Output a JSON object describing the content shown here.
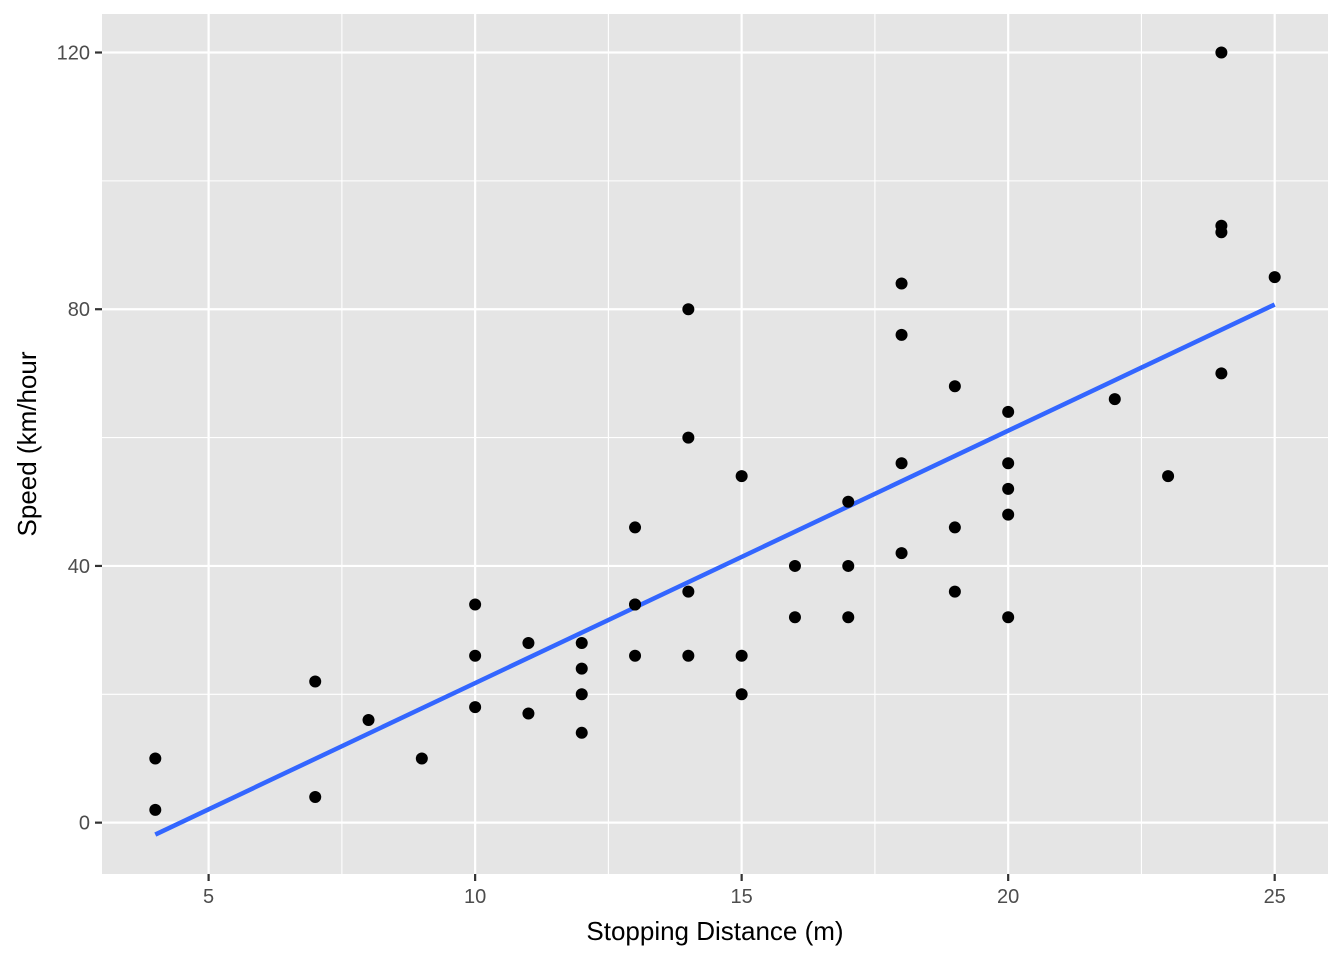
{
  "chart_data": {
    "type": "scatter",
    "title": "",
    "xlabel": "Stopping Distance (m)",
    "ylabel": "Speed (km/hour",
    "xlim": [
      3,
      26
    ],
    "ylim": [
      -8,
      126
    ],
    "x_ticks": [
      5,
      10,
      15,
      20,
      25
    ],
    "y_ticks": [
      0,
      40,
      80,
      120
    ],
    "x_minor_ticks": [
      7.5,
      12.5,
      17.5,
      22.5
    ],
    "y_minor_ticks": [
      20,
      60,
      100
    ],
    "grid": true,
    "colors": {
      "panel": "#e5e5e5",
      "grid": "#ffffff",
      "points": "#000000",
      "fit_line": "#3366ff"
    },
    "points": [
      {
        "x": 4,
        "y": 2
      },
      {
        "x": 4,
        "y": 10
      },
      {
        "x": 7,
        "y": 4
      },
      {
        "x": 7,
        "y": 22
      },
      {
        "x": 8,
        "y": 16
      },
      {
        "x": 9,
        "y": 10
      },
      {
        "x": 10,
        "y": 18
      },
      {
        "x": 10,
        "y": 26
      },
      {
        "x": 10,
        "y": 34
      },
      {
        "x": 11,
        "y": 17
      },
      {
        "x": 11,
        "y": 28
      },
      {
        "x": 12,
        "y": 14
      },
      {
        "x": 12,
        "y": 20
      },
      {
        "x": 12,
        "y": 24
      },
      {
        "x": 12,
        "y": 28
      },
      {
        "x": 13,
        "y": 26
      },
      {
        "x": 13,
        "y": 34
      },
      {
        "x": 13,
        "y": 34
      },
      {
        "x": 13,
        "y": 46
      },
      {
        "x": 14,
        "y": 26
      },
      {
        "x": 14,
        "y": 36
      },
      {
        "x": 14,
        "y": 60
      },
      {
        "x": 14,
        "y": 80
      },
      {
        "x": 15,
        "y": 20
      },
      {
        "x": 15,
        "y": 26
      },
      {
        "x": 15,
        "y": 54
      },
      {
        "x": 16,
        "y": 32
      },
      {
        "x": 16,
        "y": 40
      },
      {
        "x": 17,
        "y": 32
      },
      {
        "x": 17,
        "y": 40
      },
      {
        "x": 17,
        "y": 50
      },
      {
        "x": 18,
        "y": 42
      },
      {
        "x": 18,
        "y": 56
      },
      {
        "x": 18,
        "y": 76
      },
      {
        "x": 18,
        "y": 84
      },
      {
        "x": 19,
        "y": 36
      },
      {
        "x": 19,
        "y": 46
      },
      {
        "x": 19,
        "y": 68
      },
      {
        "x": 20,
        "y": 32
      },
      {
        "x": 20,
        "y": 48
      },
      {
        "x": 20,
        "y": 52
      },
      {
        "x": 20,
        "y": 56
      },
      {
        "x": 20,
        "y": 64
      },
      {
        "x": 22,
        "y": 66
      },
      {
        "x": 23,
        "y": 54
      },
      {
        "x": 24,
        "y": 70
      },
      {
        "x": 24,
        "y": 92
      },
      {
        "x": 24,
        "y": 93
      },
      {
        "x": 24,
        "y": 120
      },
      {
        "x": 25,
        "y": 85
      }
    ],
    "fit_line": {
      "x": [
        4,
        25
      ],
      "y": [
        -1.85,
        80.73
      ]
    }
  }
}
